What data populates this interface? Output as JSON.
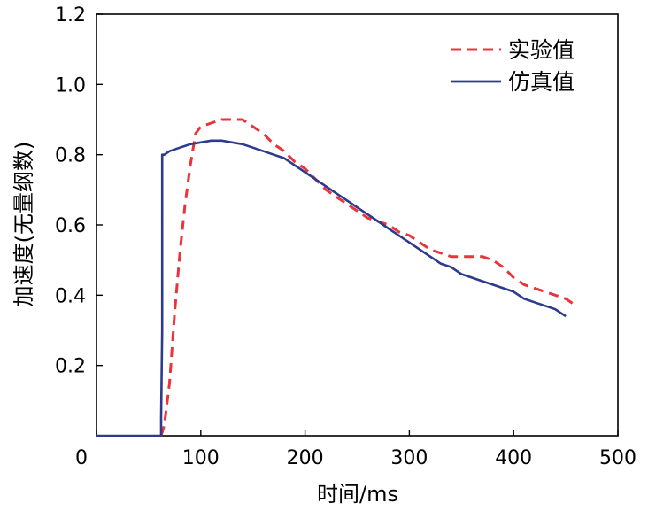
{
  "chart_data": {
    "type": "line",
    "title": "",
    "xlabel": "时间/ms",
    "ylabel": "加速度(无量纲数)",
    "xlim": [
      0,
      500
    ],
    "ylim": [
      0,
      1.2
    ],
    "xticks": [
      0,
      100,
      200,
      300,
      400,
      500
    ],
    "yticks": [
      0.2,
      0.4,
      0.6,
      0.8,
      1.0,
      1.2
    ],
    "xtick_labels": [
      "0",
      "100",
      "200",
      "300",
      "400",
      "500"
    ],
    "ytick_labels": [
      "0.2",
      "0.4",
      "0.6",
      "0.8",
      "1.0",
      "1.2"
    ],
    "grid": false,
    "legend_position": "top-right",
    "series": [
      {
        "name": "实验值",
        "color": "#e8343a",
        "style": "dashed",
        "x": [
          62,
          65,
          70,
          75,
          80,
          85,
          90,
          95,
          100,
          110,
          120,
          130,
          140,
          150,
          160,
          170,
          180,
          190,
          200,
          210,
          220,
          230,
          240,
          250,
          260,
          270,
          280,
          290,
          300,
          310,
          320,
          330,
          340,
          350,
          360,
          370,
          380,
          390,
          400,
          410,
          420,
          430,
          440,
          450,
          460
        ],
        "y": [
          0.0,
          0.03,
          0.15,
          0.35,
          0.52,
          0.66,
          0.77,
          0.86,
          0.88,
          0.89,
          0.9,
          0.9,
          0.9,
          0.88,
          0.86,
          0.83,
          0.81,
          0.78,
          0.76,
          0.73,
          0.7,
          0.68,
          0.66,
          0.64,
          0.62,
          0.61,
          0.6,
          0.58,
          0.57,
          0.55,
          0.53,
          0.52,
          0.51,
          0.51,
          0.51,
          0.51,
          0.5,
          0.48,
          0.45,
          0.43,
          0.42,
          0.41,
          0.4,
          0.39,
          0.37
        ]
      },
      {
        "name": "仿真值",
        "color": "#2e3a8c",
        "style": "solid",
        "x": [
          0,
          62,
          62,
          63,
          63,
          65,
          70,
          80,
          90,
          100,
          110,
          120,
          130,
          140,
          150,
          160,
          170,
          180,
          190,
          200,
          210,
          220,
          230,
          240,
          250,
          260,
          270,
          280,
          290,
          300,
          310,
          320,
          330,
          340,
          350,
          360,
          370,
          380,
          390,
          400,
          410,
          420,
          430,
          440,
          450
        ],
        "y": [
          0.0,
          0.0,
          0.05,
          0.3,
          0.8,
          0.8,
          0.81,
          0.82,
          0.83,
          0.835,
          0.84,
          0.84,
          0.835,
          0.83,
          0.82,
          0.81,
          0.8,
          0.79,
          0.77,
          0.75,
          0.73,
          0.71,
          0.69,
          0.67,
          0.65,
          0.63,
          0.61,
          0.59,
          0.57,
          0.55,
          0.53,
          0.51,
          0.49,
          0.48,
          0.46,
          0.45,
          0.44,
          0.43,
          0.42,
          0.41,
          0.39,
          0.38,
          0.37,
          0.36,
          0.34
        ]
      }
    ]
  }
}
